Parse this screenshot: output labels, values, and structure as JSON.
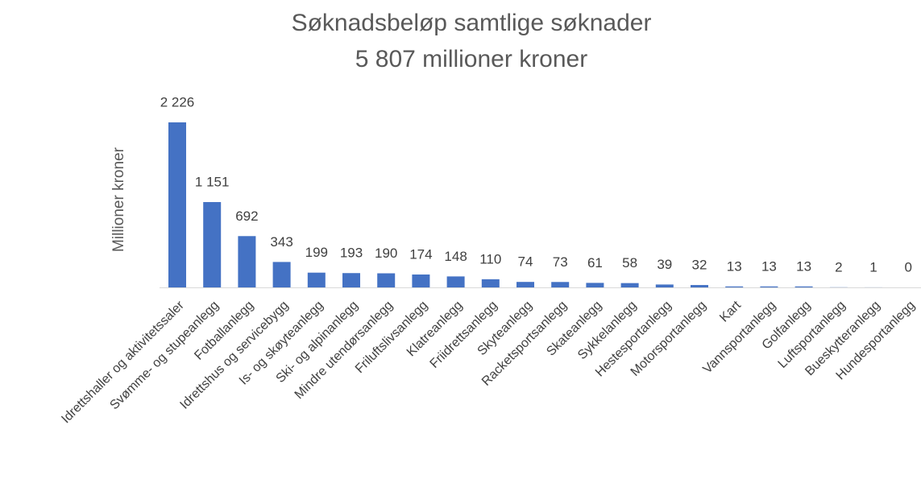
{
  "chart_data": {
    "type": "bar",
    "title": "Søknadsbeløp samtlige søknader",
    "subtitle": "5 807 millioner kroner",
    "y_label": "Millioner kroner",
    "color": "#4472c4",
    "categories": [
      "Idrettshaller og aktivitetssaler",
      "Svømme- og stupeanlegg",
      "Fotballanlegg",
      "Idrettshus og servicebygg",
      "Is- og skøyteanlegg",
      "Ski- og alpinanlegg",
      "Mindre utendørsanlegg",
      "Friluftslivsanlegg",
      "Klatreanlegg",
      "Friidrettsanlegg",
      "Skyteanlegg",
      "Racketsportsanlegg",
      "Skateanlegg",
      "Sykkelanlegg",
      "Hestesportanlegg",
      "Motorsportanlegg",
      "Kart",
      "Vannsportanlegg",
      "Golfanlegg",
      "Luftsportanlegg",
      "Bueskytteranlegg",
      "Hundesportanlegg"
    ],
    "values": [
      2226,
      1151,
      692,
      343,
      199,
      193,
      190,
      174,
      148,
      110,
      74,
      73,
      61,
      58,
      39,
      32,
      13,
      13,
      13,
      2,
      1,
      0
    ],
    "value_labels": [
      "2 226",
      "1 151",
      "692",
      "343",
      "199",
      "193",
      "190",
      "174",
      "148",
      "110",
      "74",
      "73",
      "61",
      "58",
      "39",
      "32",
      "13",
      "13",
      "13",
      "2",
      "1",
      "0"
    ]
  }
}
